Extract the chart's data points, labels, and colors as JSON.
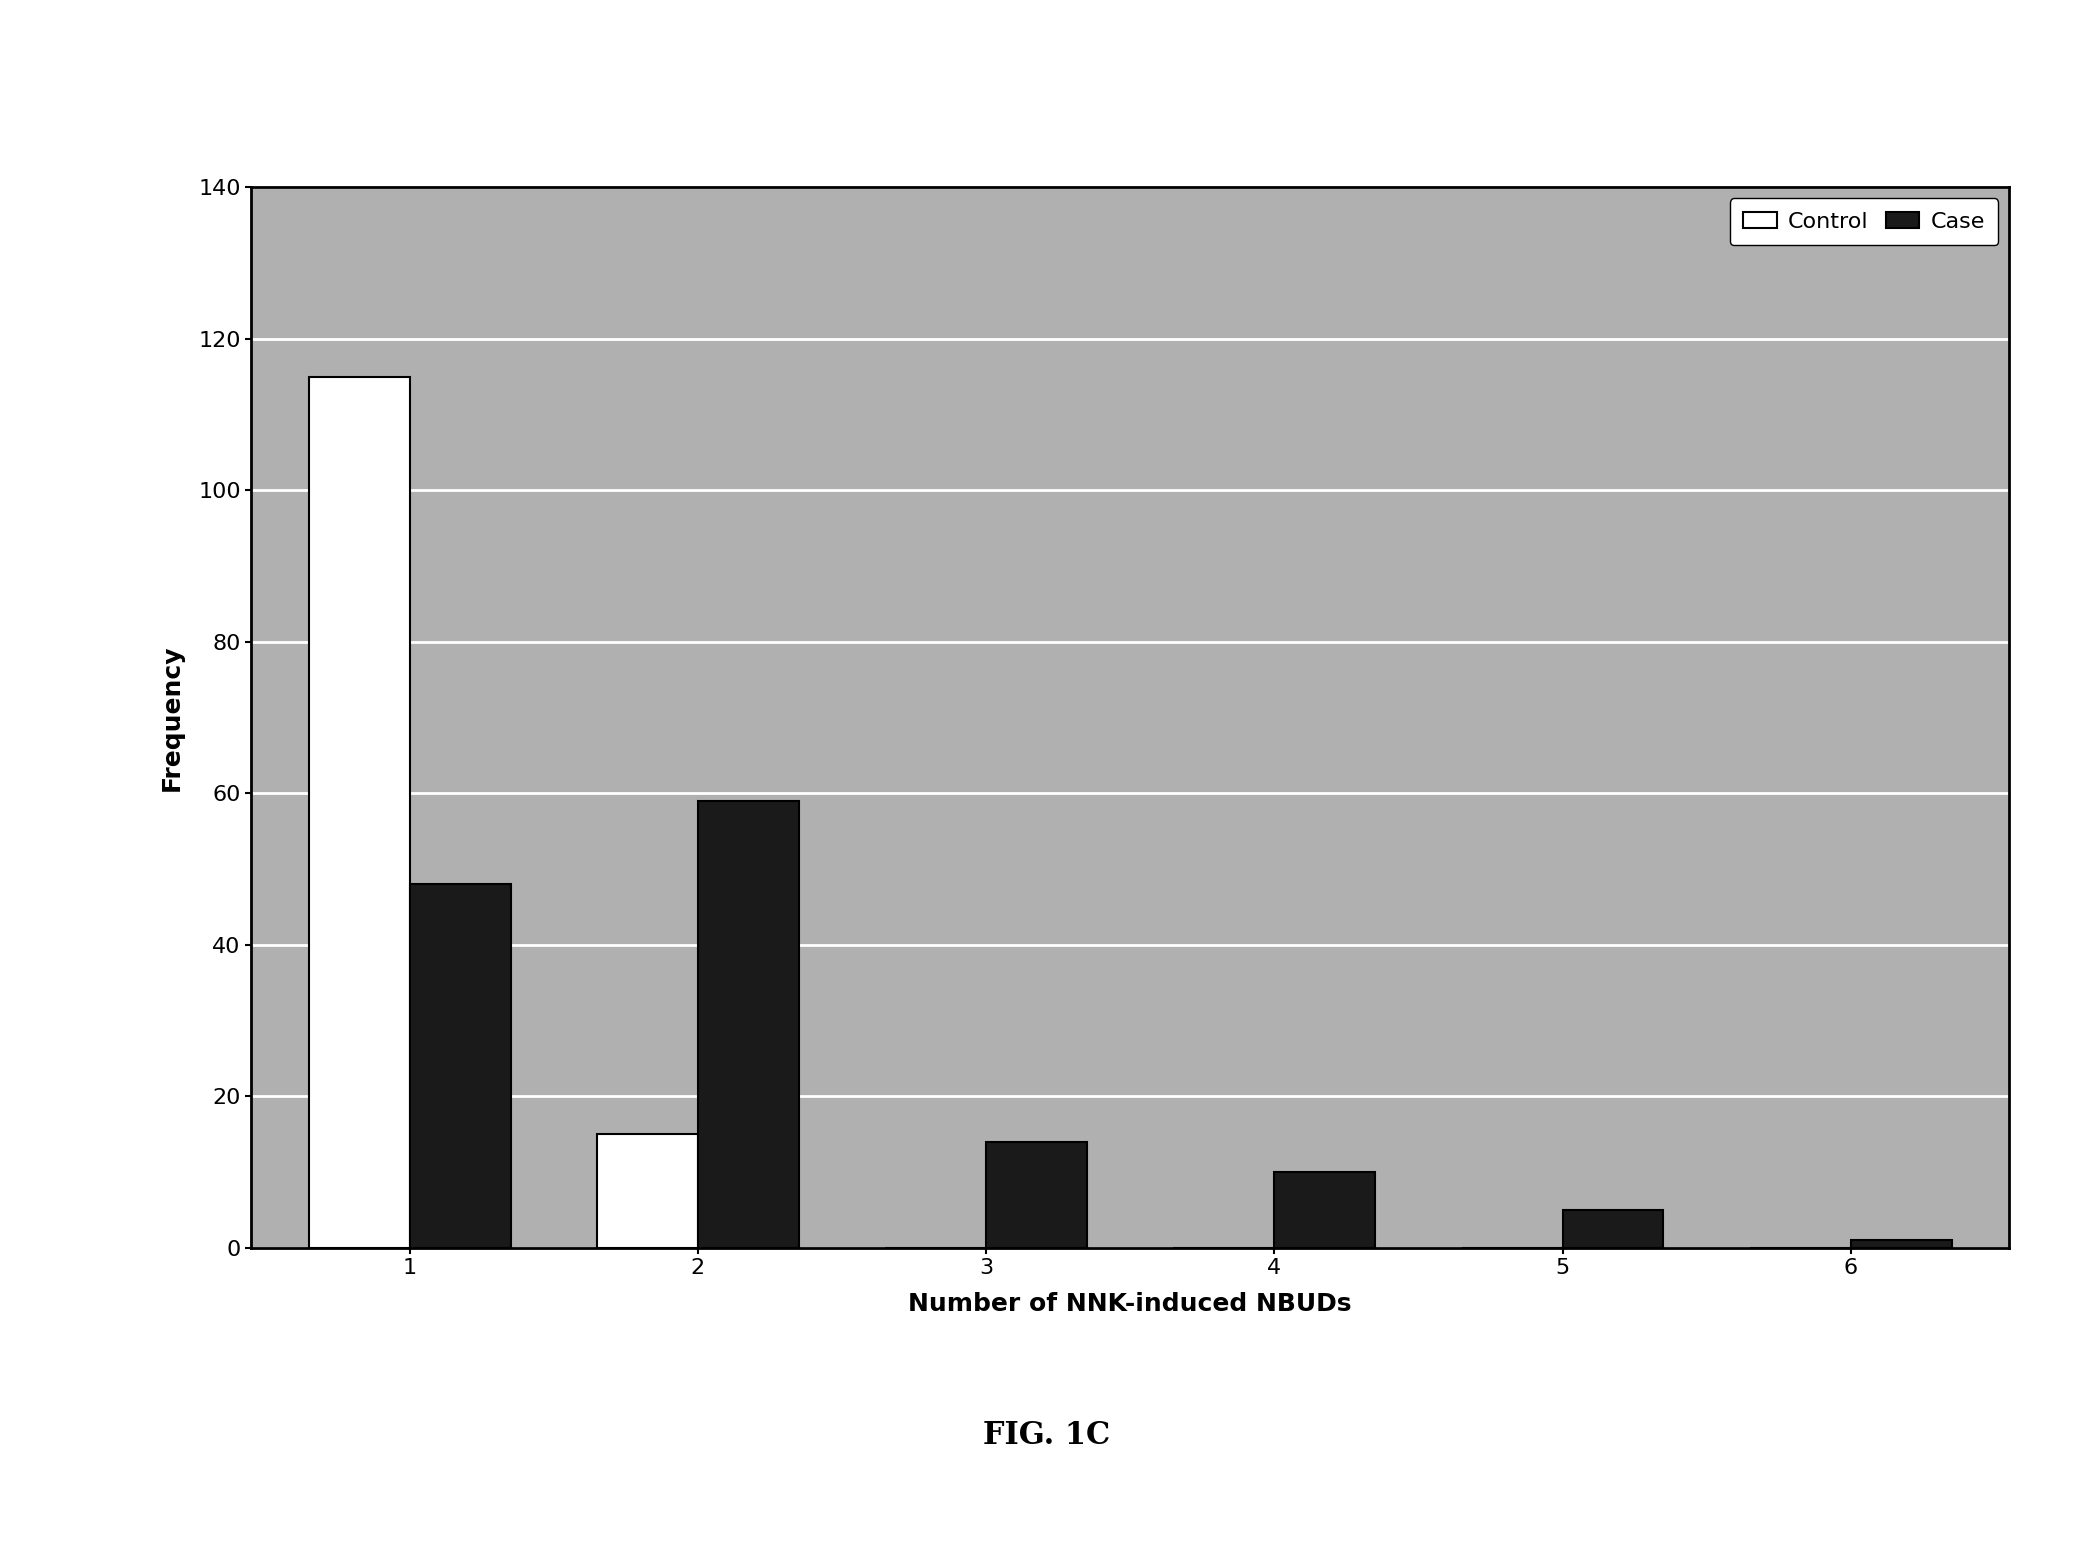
{
  "categories": [
    1,
    2,
    3,
    4,
    5,
    6
  ],
  "control_values": [
    115,
    15,
    0,
    0,
    0,
    0
  ],
  "case_values": [
    48,
    59,
    14,
    10,
    5,
    1
  ],
  "control_color": "#ffffff",
  "case_color": "#1a1a1a",
  "bar_edge_color": "#000000",
  "xlabel": "Number of NNK-induced NBUDs",
  "ylabel": "Frequency",
  "ylim": [
    0,
    140
  ],
  "yticks": [
    0,
    20,
    40,
    60,
    80,
    100,
    120,
    140
  ],
  "figure_caption": "FIG. 1C",
  "legend_labels": [
    "Control",
    "Case"
  ],
  "plot_bg_color": "#b0b0b0",
  "figure_bg_color": "#ffffff",
  "grid_color": "#ffffff",
  "bar_width": 0.35,
  "xlabel_fontsize": 18,
  "ylabel_fontsize": 18,
  "tick_fontsize": 16,
  "legend_fontsize": 16,
  "caption_fontsize": 22
}
